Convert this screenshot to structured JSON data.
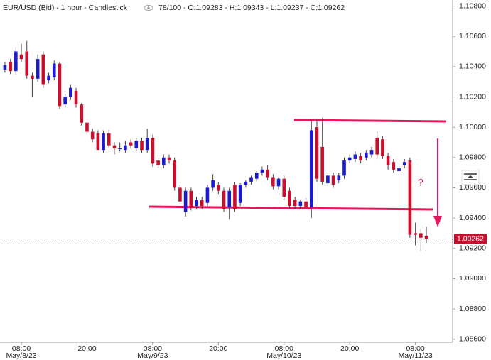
{
  "chart_data": {
    "type": "candlestick",
    "title": "EUR/USD (Bid) - 1 hour - Candlestick",
    "info": "78/100 - O:1.09283 - H:1.09343 - L:1.09237 - C:1.09262",
    "annotation": "?",
    "up_color": "#1c1ccc",
    "down_color": "#c8102e",
    "open": [
      1.1038,
      1.1043,
      1.1037,
      1.1048,
      1.105,
      1.1034,
      1.1032,
      1.1048,
      1.1031,
      1.1033,
      1.1042,
      1.1015,
      1.102,
      1.1024,
      1.1015,
      1.1003,
      1.0997,
      1.0996,
      1.0985,
      1.0996,
      1.0988,
      1.0986,
      1.0985,
      1.099,
      1.0986,
      1.0991,
      1.0985,
      1.0993,
      1.0978,
      1.0975,
      1.098,
      1.0978,
      1.096,
      1.0944,
      1.0958,
      1.0948,
      1.0952,
      1.095,
      1.096,
      1.0962,
      1.0958,
      1.0947,
      1.0962,
      1.095,
      1.0962,
      1.0964,
      1.0966,
      1.097,
      1.0972,
      1.0967,
      1.0961,
      1.0966,
      1.0958,
      1.0952,
      1.0948,
      1.0951,
      1.0947,
      1.1,
      1.0987,
      1.0963,
      1.0968,
      1.0965,
      1.0968,
      1.0978,
      1.0979,
      1.0981,
      1.098,
      1.0982,
      1.0993,
      1.0992,
      1.0981,
      1.0977,
      1.0971,
      1.0975,
      1.0978,
      1.093,
      1.093,
      1.09283
    ],
    "high": [
      1.1043,
      1.1045,
      1.1053,
      1.1055,
      1.1057,
      1.1036,
      1.1048,
      1.105,
      1.1036,
      1.1044,
      1.1043,
      1.1022,
      1.1028,
      1.1026,
      1.1016,
      1.1005,
      1.0999,
      1.0998,
      1.0998,
      1.0998,
      1.099,
      1.099,
      1.0991,
      1.0992,
      1.0993,
      1.0993,
      1.0999,
      1.0995,
      1.098,
      1.0982,
      1.0982,
      1.098,
      1.0962,
      1.096,
      1.096,
      1.0954,
      1.0954,
      1.0962,
      1.0969,
      1.0964,
      1.096,
      1.096,
      1.0964,
      1.0963,
      1.0965,
      1.0968,
      1.0971,
      1.0974,
      1.0975,
      1.0969,
      1.0967,
      1.0968,
      1.096,
      1.0954,
      1.0952,
      1.0953,
      1.1004,
      1.1005,
      1.1006,
      1.097,
      1.097,
      1.097,
      1.098,
      1.0982,
      1.0984,
      1.0983,
      1.0985,
      1.0987,
      1.0997,
      1.0994,
      1.0983,
      1.0979,
      1.0974,
      1.0979,
      1.098,
      1.0937,
      1.0933,
      1.09343
    ],
    "low": [
      1.1036,
      1.1035,
      1.1035,
      1.1043,
      1.1032,
      1.102,
      1.103,
      1.1026,
      1.1029,
      1.1031,
      1.1012,
      1.1013,
      1.1018,
      1.1013,
      1.1001,
      1.0995,
      1.099,
      1.0985,
      1.0983,
      1.0986,
      1.0982,
      1.0984,
      1.0983,
      1.0986,
      1.0984,
      1.0983,
      1.0983,
      1.0974,
      1.0973,
      1.0973,
      1.0976,
      1.0958,
      1.0949,
      1.0941,
      1.0945,
      1.0946,
      1.0946,
      1.0948,
      1.0958,
      1.0956,
      1.0944,
      1.0939,
      1.0944,
      1.0948,
      1.096,
      1.0962,
      1.0964,
      1.0968,
      1.0965,
      1.0959,
      1.0959,
      1.0952,
      1.0946,
      1.0946,
      1.0946,
      1.0946,
      1.094,
      1.0964,
      1.0962,
      1.0961,
      1.096,
      1.0963,
      1.0966,
      1.0976,
      1.0977,
      1.0976,
      1.0978,
      1.098,
      1.098,
      1.0979,
      1.0972,
      1.097,
      1.0969,
      1.0973,
      1.0927,
      1.0922,
      1.0918,
      1.09237
    ],
    "close": [
      1.1041,
      1.1037,
      1.105,
      1.1045,
      1.1034,
      1.1032,
      1.1045,
      1.1028,
      1.1034,
      1.1042,
      1.1014,
      1.102,
      1.1026,
      1.1015,
      1.1003,
      1.0997,
      1.0992,
      1.0985,
      1.0996,
      1.0988,
      1.0986,
      1.0986,
      1.0988,
      1.0988,
      1.0991,
      1.0985,
      1.0993,
      1.0976,
      1.0975,
      1.098,
      1.0978,
      1.096,
      1.0951,
      1.0958,
      1.0947,
      1.0952,
      1.0948,
      1.096,
      1.0965,
      1.0958,
      1.0946,
      1.0958,
      1.0946,
      1.0962,
      1.0964,
      1.0967,
      1.097,
      1.0972,
      1.0967,
      1.0961,
      1.0966,
      1.0954,
      1.0948,
      1.0948,
      1.0951,
      1.0947,
      1.0998,
      1.0966,
      1.0964,
      1.0968,
      1.0962,
      1.0968,
      1.0978,
      1.098,
      1.0982,
      1.0978,
      1.0983,
      1.0985,
      1.0982,
      1.0981,
      1.0975,
      1.0972,
      1.0973,
      1.0977,
      1.0929,
      1.0929,
      1.0927,
      1.09262
    ],
    "xlim": [
      -0.9,
      81.8
    ],
    "xticks": [
      {
        "value": 3,
        "label": "08:00"
      },
      {
        "value": 15,
        "label": "20:00"
      },
      {
        "value": 27,
        "label": "08:00"
      },
      {
        "value": 39,
        "label": "20:00"
      },
      {
        "value": 51,
        "label": "08:00"
      },
      {
        "value": 63,
        "label": "20:00"
      },
      {
        "value": 75,
        "label": "08:00"
      }
    ],
    "xtick_dates": [
      {
        "value": 3,
        "label": "May/8/23"
      },
      {
        "value": 27,
        "label": "May/9/23"
      },
      {
        "value": 51,
        "label": "May/10/23"
      },
      {
        "value": 75,
        "label": "May/11/23"
      }
    ],
    "ylim": [
      1.0858,
      1.1084
    ],
    "yticks": [
      {
        "value": 1.108,
        "label": "1.10800"
      },
      {
        "value": 1.106,
        "label": "1.10600"
      },
      {
        "value": 1.104,
        "label": "1.10400"
      },
      {
        "value": 1.102,
        "label": "1.10200"
      },
      {
        "value": 1.1,
        "label": "1.10000"
      },
      {
        "value": 1.098,
        "label": "1.09800"
      },
      {
        "value": 1.096,
        "label": "1.09600"
      },
      {
        "value": 1.094,
        "label": "1.09400"
      },
      {
        "value": 1.092,
        "label": "1.09200"
      },
      {
        "value": 1.09,
        "label": "1.09000"
      },
      {
        "value": 1.088,
        "label": "1.08800"
      },
      {
        "value": 1.086,
        "label": "1.08600"
      }
    ],
    "last_price": {
      "value": 1.09262,
      "label": "1.09262"
    }
  }
}
